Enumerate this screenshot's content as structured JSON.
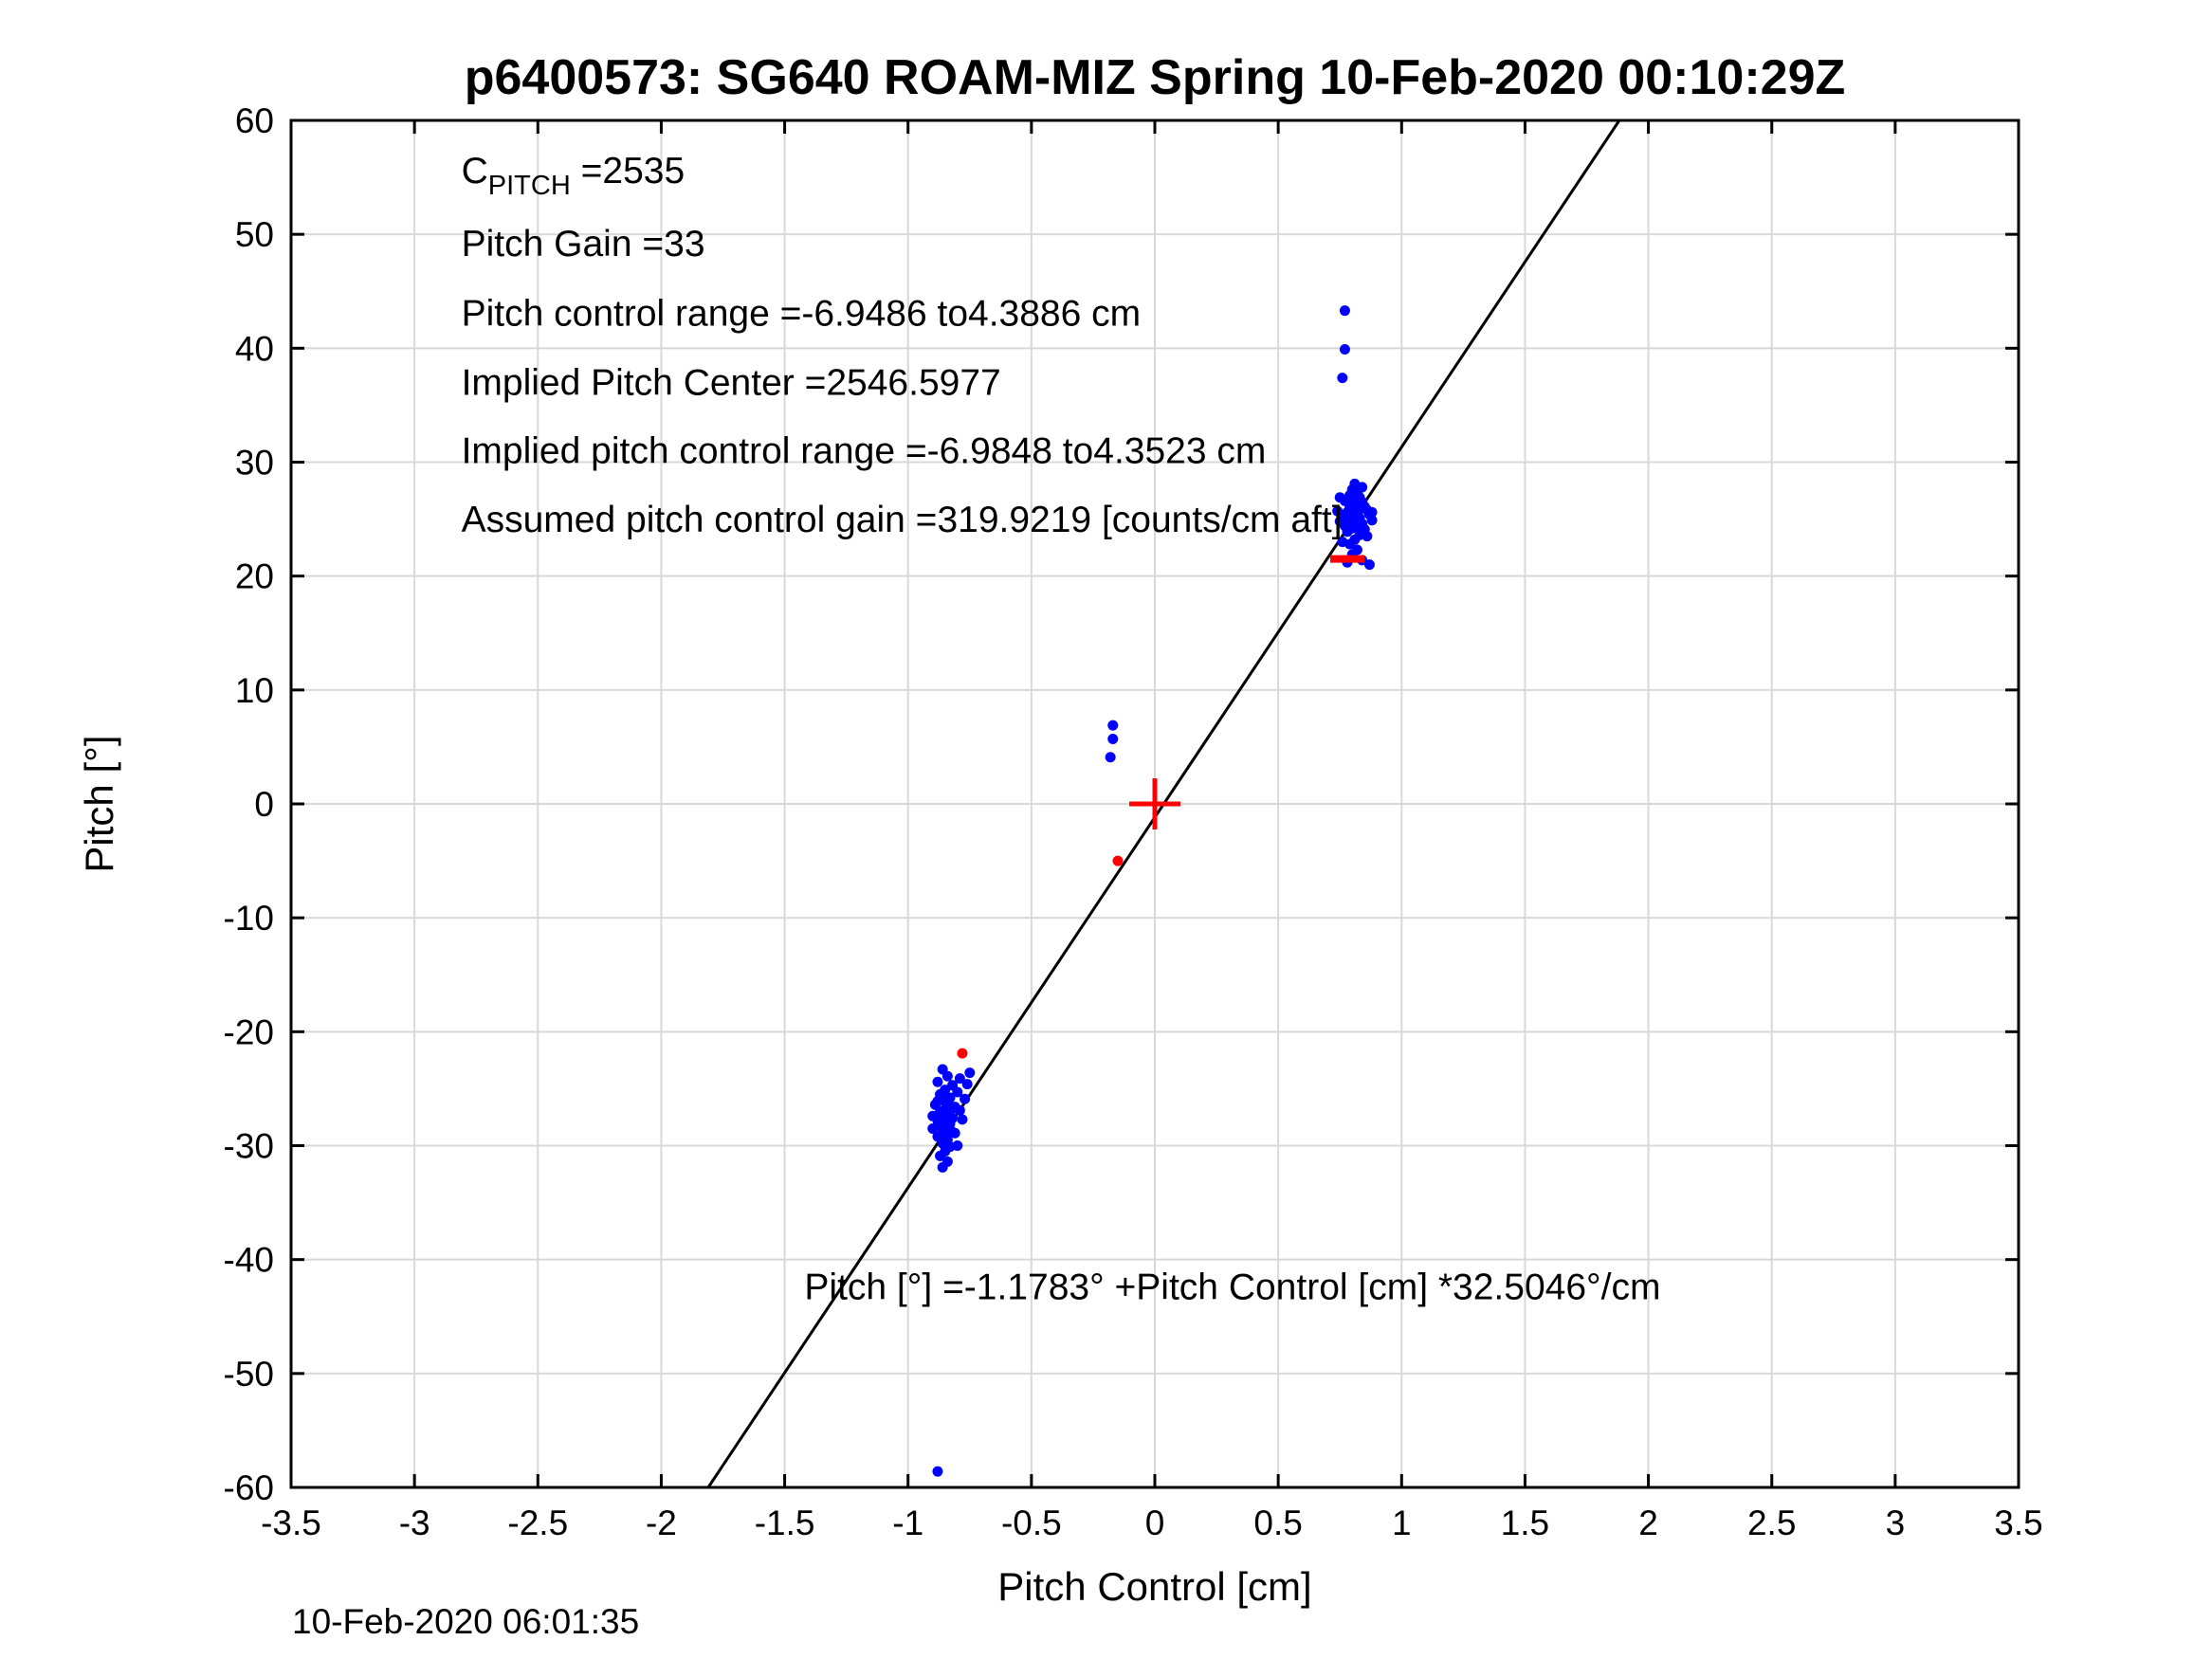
{
  "footer_timestamp": "10-Feb-2020 06:01:35",
  "chart_data": {
    "type": "scatter",
    "title": "p6400573: SG640 ROAM-MIZ Spring 10-Feb-2020 00:10:29Z",
    "xlabel": "Pitch Control [cm]",
    "ylabel": "Pitch [°]",
    "xlim": [
      -3.5,
      3.5
    ],
    "ylim": [
      -60,
      60
    ],
    "xticks": [
      -3.5,
      -3,
      -2.5,
      -2,
      -1.5,
      -1,
      -0.5,
      0,
      0.5,
      1,
      1.5,
      2,
      2.5,
      3,
      3.5
    ],
    "xtick_labels": [
      "-3.5",
      "-3",
      "-2.5",
      "-2",
      "-1.5",
      "-1",
      "-0.5",
      "0",
      "0.5",
      "1",
      "1.5",
      "2",
      "2.5",
      "3",
      "3.5"
    ],
    "yticks": [
      -60,
      -50,
      -40,
      -30,
      -20,
      -10,
      0,
      10,
      20,
      30,
      40,
      50,
      60
    ],
    "ytick_labels": [
      "-60",
      "-50",
      "-40",
      "-30",
      "-20",
      "-10",
      "0",
      "10",
      "20",
      "30",
      "40",
      "50",
      "60"
    ],
    "grid": true,
    "grid_color": "#d8d8d8",
    "axis_color": "#000000",
    "legend": "none",
    "fit_line": {
      "intercept": -1.1783,
      "slope": 32.5046,
      "color": "#000000"
    },
    "annotations": [
      {
        "x": -2.81,
        "y": 54.5,
        "segments": [
          {
            "t": "C"
          },
          {
            "t": "PITCH",
            "sub": true
          },
          {
            "t": " =2535"
          }
        ]
      },
      {
        "x": -2.81,
        "y": 48.1,
        "segments": [
          {
            "t": "Pitch Gain =33"
          }
        ]
      },
      {
        "x": -2.81,
        "y": 42.0,
        "segments": [
          {
            "t": "Pitch control range =-6.9486 to4.3886 cm"
          }
        ]
      },
      {
        "x": -2.81,
        "y": 35.9,
        "segments": [
          {
            "t": "Implied Pitch Center =2546.5977"
          }
        ]
      },
      {
        "x": -2.81,
        "y": 29.9,
        "segments": [
          {
            "t": "Implied pitch control range =-6.9848 to4.3523 cm"
          }
        ]
      },
      {
        "x": -2.81,
        "y": 23.9,
        "segments": [
          {
            "t": "Assumed pitch control gain =319.9219 [counts/cm aft]"
          }
        ]
      },
      {
        "x": -1.42,
        "y": -43.5,
        "segments": [
          {
            "t": "Pitch [°] =-1.1783° +Pitch Control [cm] *32.5046°/cm"
          }
        ]
      }
    ],
    "series": [
      {
        "name": "pitch-samples-blue",
        "color": "#0000ff",
        "marker": "dot",
        "size": 5.5,
        "points": [
          [
            -0.86,
            -23.3
          ],
          [
            -0.84,
            -23.9
          ],
          [
            -0.88,
            -24.4
          ],
          [
            -0.82,
            -24.7
          ],
          [
            -0.85,
            -25.1
          ],
          [
            -0.87,
            -25.5
          ],
          [
            -0.83,
            -25.8
          ],
          [
            -0.86,
            -26.0
          ],
          [
            -0.84,
            -26.2
          ],
          [
            -0.89,
            -26.4
          ],
          [
            -0.81,
            -26.6
          ],
          [
            -0.85,
            -26.8
          ],
          [
            -0.87,
            -27.0
          ],
          [
            -0.83,
            -27.1
          ],
          [
            -0.86,
            -27.3
          ],
          [
            -0.84,
            -27.5
          ],
          [
            -0.82,
            -27.6
          ],
          [
            -0.88,
            -27.8
          ],
          [
            -0.85,
            -27.9
          ],
          [
            -0.83,
            -28.1
          ],
          [
            -0.87,
            -28.2
          ],
          [
            -0.84,
            -28.4
          ],
          [
            -0.86,
            -28.6
          ],
          [
            -0.82,
            -28.8
          ],
          [
            -0.85,
            -29.0
          ],
          [
            -0.88,
            -29.2
          ],
          [
            -0.84,
            -29.5
          ],
          [
            -0.86,
            -29.8
          ],
          [
            -0.83,
            -30.1
          ],
          [
            -0.85,
            -30.5
          ],
          [
            -0.87,
            -30.9
          ],
          [
            -0.84,
            -31.4
          ],
          [
            -0.86,
            -31.9
          ],
          [
            -0.79,
            -26.9
          ],
          [
            -0.78,
            -27.7
          ],
          [
            -0.77,
            -25.9
          ],
          [
            -0.76,
            -24.6
          ],
          [
            -0.75,
            -23.6
          ],
          [
            -0.8,
            -25.3
          ],
          [
            -0.79,
            -24.1
          ],
          [
            -0.9,
            -27.4
          ],
          [
            -0.9,
            -28.5
          ],
          [
            -0.88,
            -26.1
          ],
          [
            -0.81,
            -28.9
          ],
          [
            -0.8,
            -30.0
          ],
          [
            -0.88,
            -58.6
          ],
          [
            -0.17,
            6.9
          ],
          [
            -0.17,
            5.7
          ],
          [
            -0.18,
            4.1
          ],
          [
            0.78,
            21.2
          ],
          [
            0.84,
            21.4
          ],
          [
            0.87,
            21.0
          ],
          [
            0.8,
            21.9
          ],
          [
            0.82,
            22.3
          ],
          [
            0.79,
            22.8
          ],
          [
            0.81,
            23.2
          ],
          [
            0.83,
            23.6
          ],
          [
            0.78,
            23.9
          ],
          [
            0.8,
            24.2
          ],
          [
            0.82,
            24.4
          ],
          [
            0.84,
            24.6
          ],
          [
            0.79,
            24.8
          ],
          [
            0.81,
            25.0
          ],
          [
            0.83,
            25.1
          ],
          [
            0.8,
            25.3
          ],
          [
            0.82,
            25.4
          ],
          [
            0.78,
            25.6
          ],
          [
            0.81,
            25.7
          ],
          [
            0.83,
            25.9
          ],
          [
            0.79,
            26.0
          ],
          [
            0.82,
            26.2
          ],
          [
            0.8,
            26.3
          ],
          [
            0.84,
            26.5
          ],
          [
            0.81,
            26.7
          ],
          [
            0.83,
            26.9
          ],
          [
            0.79,
            27.1
          ],
          [
            0.82,
            27.3
          ],
          [
            0.8,
            27.6
          ],
          [
            0.85,
            26.1
          ],
          [
            0.86,
            25.8
          ],
          [
            0.87,
            25.4
          ],
          [
            0.76,
            25.1
          ],
          [
            0.75,
            24.8
          ],
          [
            0.77,
            26.6
          ],
          [
            0.74,
            25.7
          ],
          [
            0.85,
            24.1
          ],
          [
            0.86,
            23.5
          ],
          [
            0.88,
            25.6
          ],
          [
            0.88,
            24.9
          ],
          [
            0.77,
            24.4
          ],
          [
            0.76,
            23.0
          ],
          [
            0.75,
            26.9
          ],
          [
            0.84,
            27.8
          ],
          [
            0.81,
            28.1
          ],
          [
            0.77,
            43.3
          ],
          [
            0.77,
            39.9
          ],
          [
            0.76,
            37.4
          ]
        ]
      },
      {
        "name": "flagged-samples-red",
        "color": "#ff0000",
        "marker": "dot",
        "size": 5.5,
        "points": [
          [
            -0.15,
            -5.0
          ],
          [
            -0.78,
            -21.9
          ]
        ]
      },
      {
        "name": "origin-cross-red",
        "color": "#ff0000",
        "marker": "plus",
        "size": 27,
        "points": [
          [
            0.0,
            0.0
          ]
        ]
      },
      {
        "name": "red-dash-marker",
        "color": "#ff0000",
        "marker": "dash",
        "size": 18,
        "points": [
          [
            0.78,
            21.5
          ]
        ]
      }
    ]
  }
}
